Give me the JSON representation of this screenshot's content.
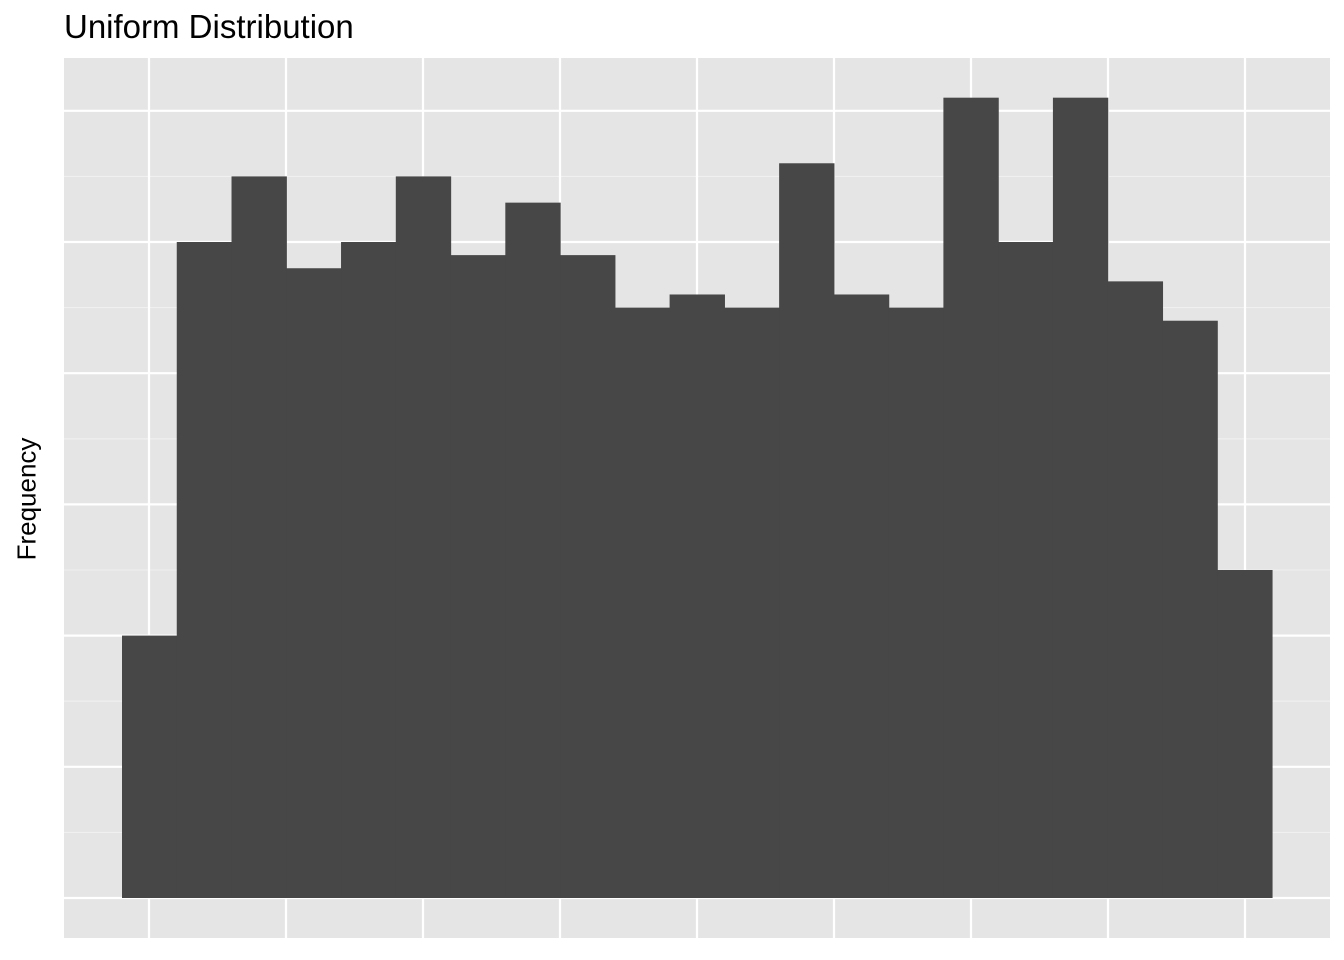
{
  "chart_data": {
    "type": "bar",
    "title": "Uniform Distribution",
    "xlabel": "",
    "ylabel": "Frequency",
    "bins": 21,
    "values": [
      20,
      50,
      55,
      48,
      50,
      55,
      49,
      53,
      49,
      45,
      46,
      45,
      56,
      46,
      45,
      61,
      50,
      61,
      47,
      44,
      25
    ],
    "ylim": [
      0,
      64.2
    ],
    "y_gridlines": [
      0,
      10,
      20,
      30,
      40,
      50,
      60
    ],
    "x_gridlines": 9,
    "grid": true,
    "colors": {
      "bar": "#474747",
      "panel": "#e5e5e5",
      "grid_major": "#ffffff",
      "grid_minor": "#f0f0f0"
    }
  }
}
